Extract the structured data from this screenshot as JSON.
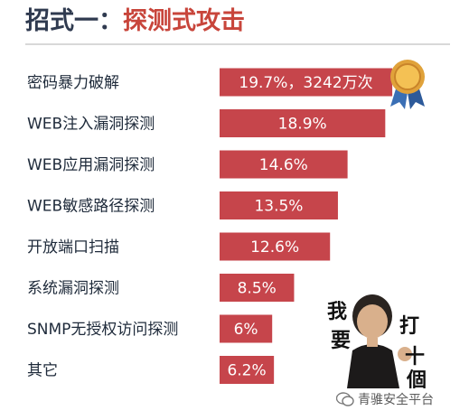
{
  "title": {
    "prefix": "招式一：",
    "main": "探测式攻击"
  },
  "colors": {
    "bar": "#c6454b",
    "title_main": "#c8453b",
    "title_prefix": "#2f3a4f"
  },
  "chart_data": {
    "type": "bar",
    "orientation": "horizontal",
    "categories": [
      "密码暴力破解",
      "WEB注入漏洞探测",
      "WEB应用漏洞探测",
      "WEB敏感路径探测",
      "开放端口扫描",
      "系统漏洞探测",
      "SNMP无授权访问探测",
      "其它"
    ],
    "values": [
      19.7,
      18.9,
      14.6,
      13.5,
      12.6,
      8.5,
      6,
      6.2
    ],
    "value_labels": [
      "19.7%，3242万次",
      "18.9%",
      "14.6%",
      "13.5%",
      "12.6%",
      "8.5%",
      "6%",
      "6.2%"
    ],
    "unit": "%"
  },
  "decorations": {
    "medal_icon": "award-medal-icon",
    "character_caption": [
      "我",
      "要",
      "打",
      "十",
      "個"
    ],
    "watermark_icon": "wechat-icon",
    "watermark_text": "青骓安全平台"
  }
}
